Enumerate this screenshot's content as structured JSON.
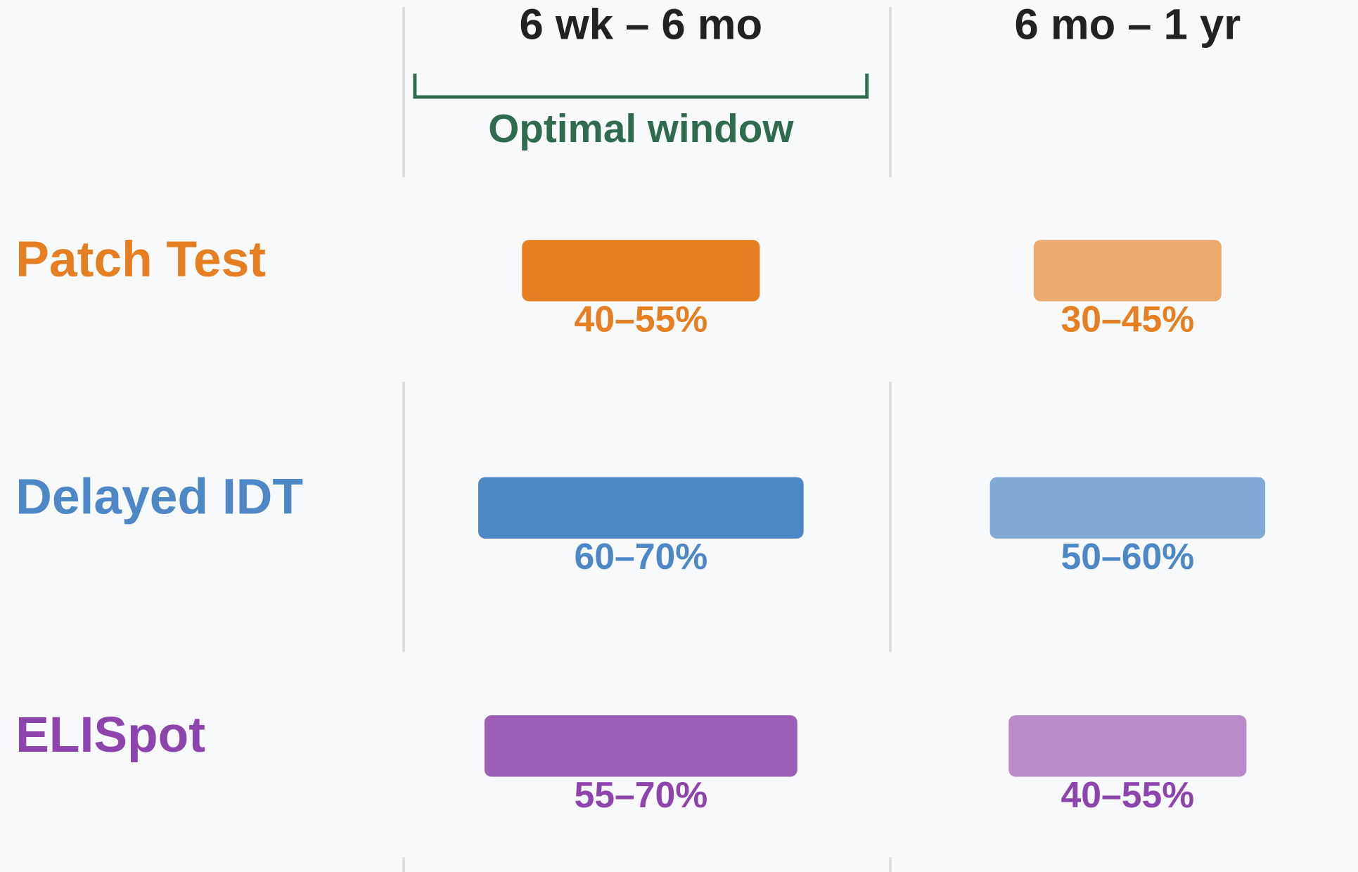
{
  "chart_data": {
    "type": "range-bar",
    "columns": [
      "6 wk – 6 mo",
      "6 mo – 1 yr"
    ],
    "annotation": "Optimal window",
    "series": [
      {
        "name": "Patch Test",
        "color": "#e67e22",
        "colors": [
          "#e67e22",
          "#edaa6e"
        ],
        "values": [
          [
            40,
            55
          ],
          [
            30,
            45
          ]
        ],
        "value_labels": [
          "40–55%",
          "30–45%"
        ]
      },
      {
        "name": "Delayed IDT",
        "color": "#4e87c5",
        "colors": [
          "#4e87c5",
          "#82a9d4"
        ],
        "values": [
          [
            60,
            70
          ],
          [
            50,
            60
          ]
        ],
        "value_labels": [
          "60–70%",
          "50–60%"
        ]
      },
      {
        "name": "ELISpot",
        "color": "#8e44ad",
        "colors": [
          "#9b5fb8",
          "#b98bc9"
        ],
        "values": [
          [
            55,
            70
          ],
          [
            40,
            55
          ]
        ],
        "value_labels": [
          "55–70%",
          "40–55%"
        ]
      }
    ]
  }
}
